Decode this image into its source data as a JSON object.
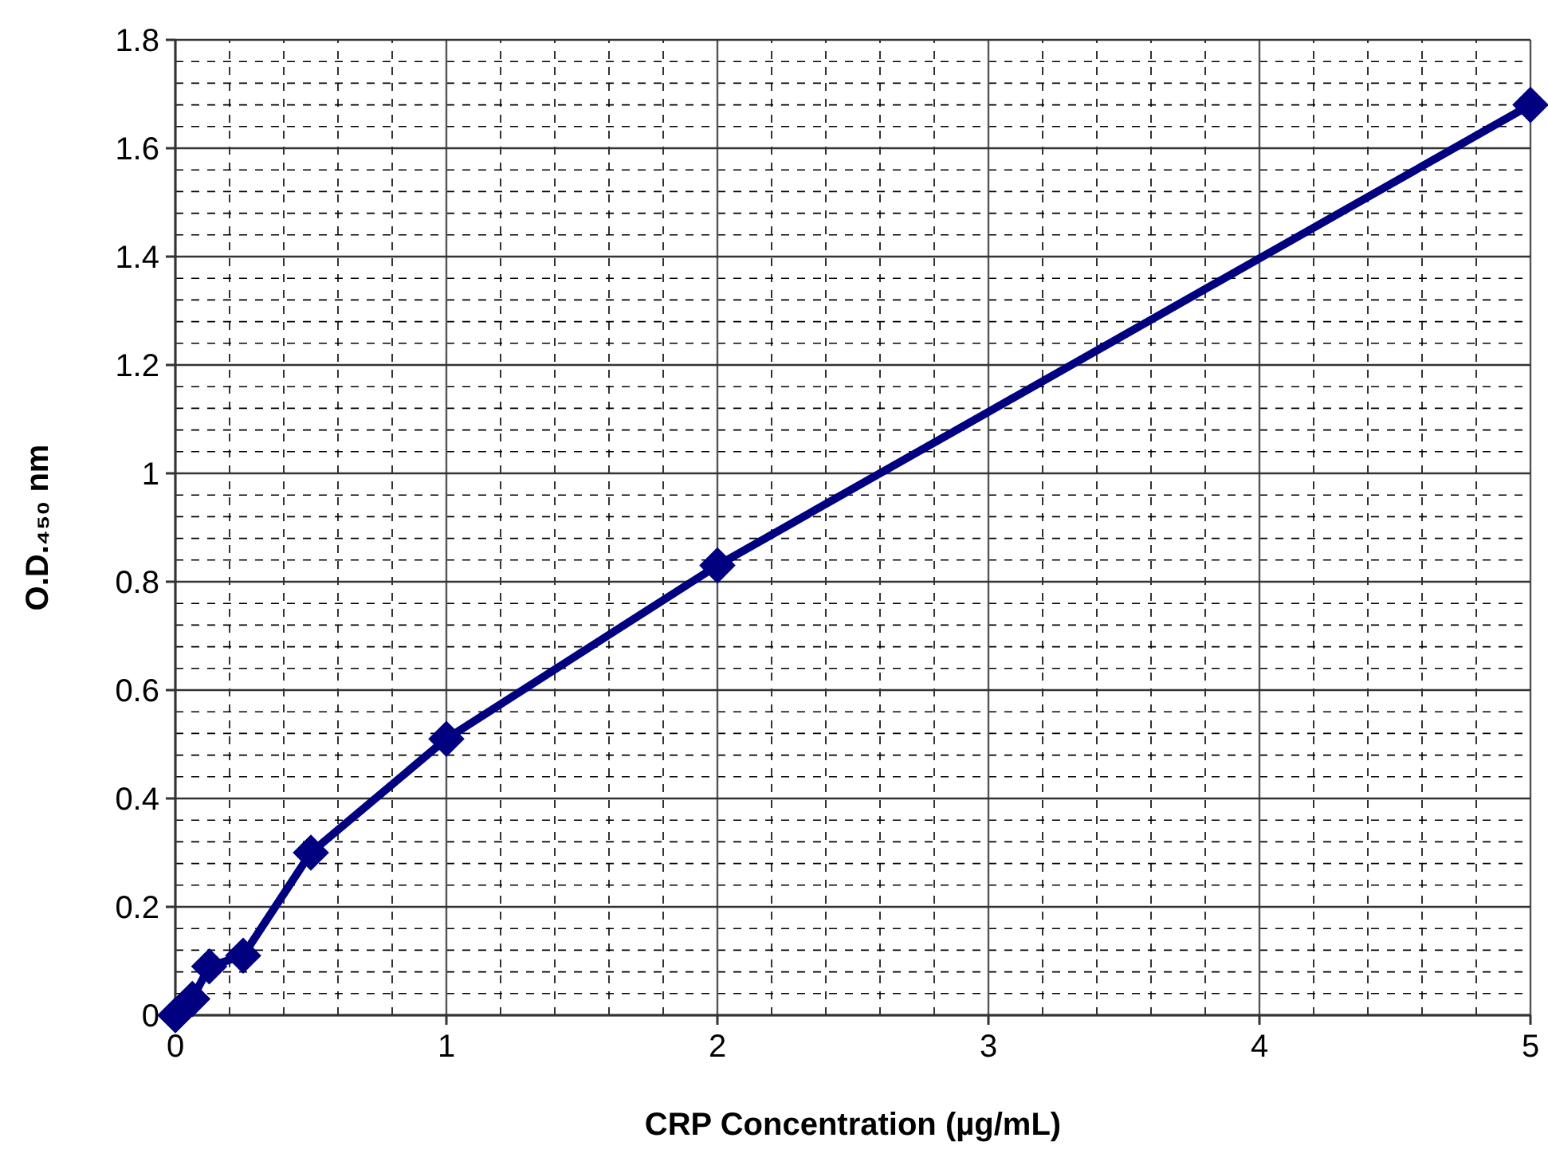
{
  "chart_data": {
    "type": "line",
    "xlabel": "CRP Concentration (µg/mL)",
    "ylabel": "O.D.₄₅₀ nm",
    "x": [
      0,
      0.0625,
      0.125,
      0.25,
      0.5,
      1,
      2,
      5
    ],
    "series": [
      {
        "color": "#000080",
        "values": [
          0,
          0.03,
          0.09,
          0.11,
          0.3,
          0.51,
          0.83,
          1.68
        ]
      }
    ],
    "xlim": [
      0,
      5
    ],
    "xticks": [
      0,
      1,
      2,
      3,
      4,
      5
    ],
    "ylim": [
      0,
      1.8
    ],
    "yticks": [
      0,
      0.2,
      0.4,
      0.6,
      0.8,
      1,
      1.2,
      1.4,
      1.6,
      1.8
    ],
    "grid": true,
    "marker": "diamond",
    "line_style": "solid"
  }
}
